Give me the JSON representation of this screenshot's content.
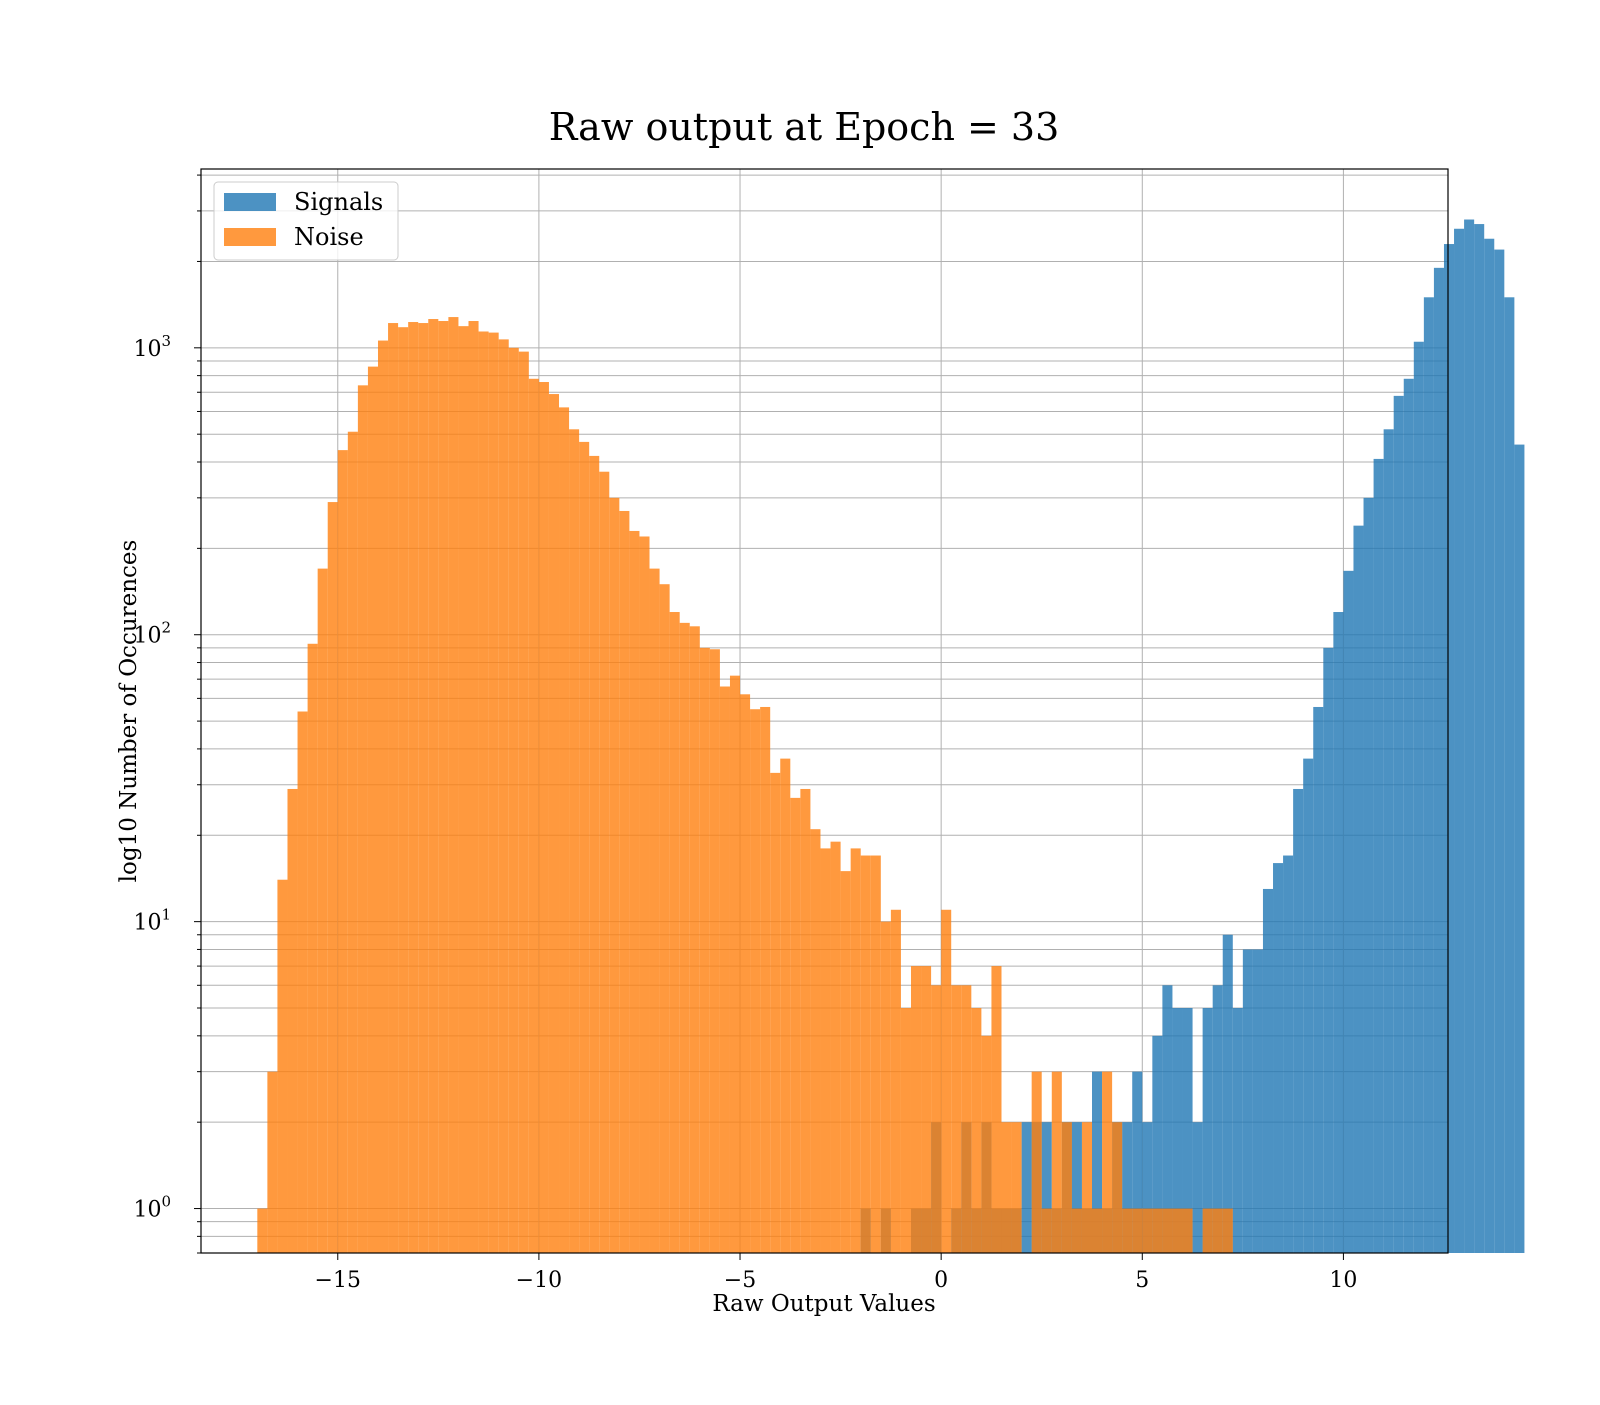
{
  "chart_data": {
    "type": "bar",
    "title": "Raw output at Epoch = 33",
    "xlabel": "Raw Output Values",
    "ylabel": "log10 Number of Occurences",
    "xlim": [
      -18.4,
      12.6
    ],
    "ylim": [
      0.7,
      4200
    ],
    "yscale": "log",
    "grid": true,
    "legend_position": "top-left",
    "bin_width": 0.25,
    "x_ticks": [
      {
        "value": -15,
        "label": "−15"
      },
      {
        "value": -10,
        "label": "−10"
      },
      {
        "value": -5,
        "label": "−5"
      },
      {
        "value": 0,
        "label": "0"
      },
      {
        "value": 5,
        "label": "5"
      },
      {
        "value": 10,
        "label": "10"
      }
    ],
    "y_ticks": [
      {
        "value": 1,
        "base": "10",
        "exp": "0"
      },
      {
        "value": 10,
        "base": "10",
        "exp": "1"
      },
      {
        "value": 100,
        "base": "10",
        "exp": "2"
      },
      {
        "value": 1000,
        "base": "10",
        "exp": "3"
      }
    ],
    "series": [
      {
        "name": "Signals",
        "color": "#1f77b4",
        "x_start": -2.0,
        "values": [
          1,
          0,
          1,
          0,
          0,
          1,
          1,
          2,
          0,
          1,
          2,
          1,
          2,
          1,
          1,
          1,
          2,
          2,
          2,
          1,
          2,
          2,
          1,
          3,
          1,
          2,
          2,
          3,
          2,
          4,
          6,
          5,
          5,
          2,
          5,
          6,
          9,
          5,
          8,
          8,
          13,
          16,
          17,
          29,
          37,
          56,
          90,
          120,
          167,
          240,
          300,
          410,
          520,
          680,
          780,
          1050,
          1500,
          1900,
          2300,
          2600,
          2800,
          2700,
          2400,
          2200,
          1500,
          460
        ]
      },
      {
        "name": "Noise",
        "color": "#ff7f0e",
        "x_start": -17.0,
        "values": [
          1,
          3,
          14,
          29,
          54,
          93,
          170,
          290,
          440,
          510,
          740,
          860,
          1060,
          1220,
          1180,
          1230,
          1220,
          1260,
          1240,
          1280,
          1190,
          1240,
          1140,
          1130,
          1070,
          1000,
          970,
          780,
          760,
          690,
          620,
          520,
          470,
          420,
          370,
          300,
          270,
          230,
          220,
          170,
          150,
          120,
          110,
          107,
          90,
          89,
          66,
          72,
          62,
          55,
          56,
          33,
          37,
          27,
          29,
          21,
          18,
          19,
          15,
          18,
          17,
          17,
          10,
          11,
          5,
          7,
          7,
          6,
          11,
          6,
          6,
          5,
          4,
          7,
          2,
          2,
          0,
          3,
          1,
          3,
          2,
          1,
          2,
          1,
          3,
          2,
          1,
          1,
          1,
          1,
          1,
          1,
          1,
          0,
          1,
          1,
          1
        ]
      }
    ]
  }
}
